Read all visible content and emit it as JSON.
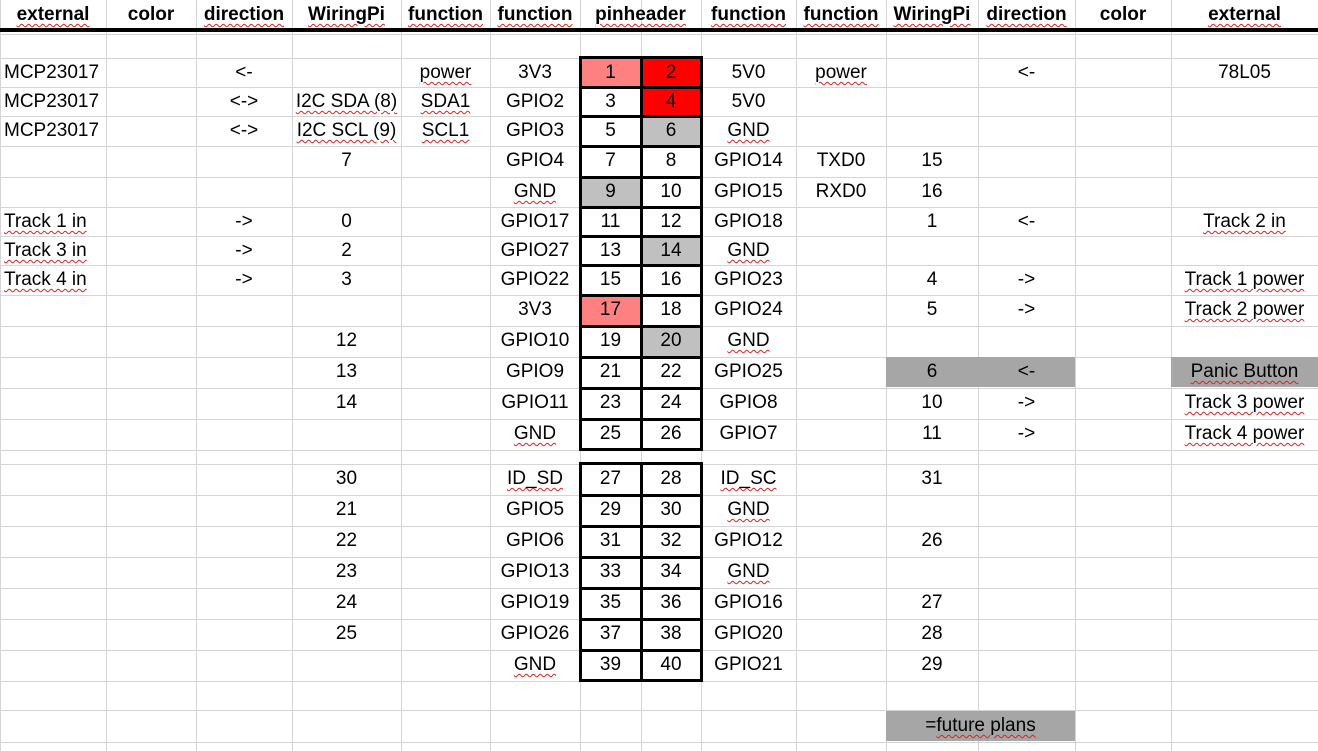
{
  "headers": [
    "external",
    "color",
    "direction",
    "WiringPi",
    "function",
    "function",
    "pinheader",
    "",
    "function",
    "function",
    "WiringPi",
    "direction",
    "color",
    "external"
  ],
  "colors": {
    "grid": "#d4d4d4",
    "pin_power_3v3": "#ff8080",
    "pin_power_5v": "#ff0000",
    "pin_ground": "#c0c0c0",
    "future_plans": "#a6a6a6"
  },
  "legend": {
    "label": "= future plans"
  },
  "rows": [
    {
      "c": [
        "MCP23017",
        "",
        "<-",
        "",
        "power",
        "3V3",
        "1",
        "2",
        "5V0",
        "power",
        "",
        "<-",
        "",
        "78L05"
      ],
      "p1": "p33",
      "p2": "p5"
    },
    {
      "c": [
        "MCP23017",
        "",
        "<->",
        "I2C SDA (8)",
        "SDA1",
        "GPIO2",
        "3",
        "4",
        "5V0",
        "",
        "",
        "",
        "",
        ""
      ],
      "p1": "",
      "p2": "p5"
    },
    {
      "c": [
        "MCP23017",
        "",
        "<->",
        "I2C SCL (9)",
        "SCL1",
        "GPIO3",
        "5",
        "6",
        "GND",
        "",
        "",
        "",
        "",
        ""
      ],
      "p1": "",
      "p2": "g"
    },
    {
      "c": [
        "",
        "",
        "",
        "7",
        "",
        "GPIO4",
        "7",
        "8",
        "GPIO14",
        "TXD0",
        "15",
        "",
        "",
        ""
      ],
      "p1": "",
      "p2": ""
    },
    {
      "c": [
        "",
        "",
        "",
        "",
        "",
        "GND",
        "9",
        "10",
        "GPIO15",
        "RXD0",
        "16",
        "",
        "",
        ""
      ],
      "p1": "g",
      "p2": ""
    },
    {
      "c": [
        "Track 1 in",
        "",
        "->",
        "0",
        "",
        "GPIO17",
        "11",
        "12",
        "GPIO18",
        "",
        "1",
        "<-",
        "",
        "Track 2 in"
      ],
      "p1": "",
      "p2": ""
    },
    {
      "c": [
        "Track 3 in",
        "",
        "->",
        "2",
        "",
        "GPIO27",
        "13",
        "14",
        "GND",
        "",
        "",
        "",
        "",
        ""
      ],
      "p1": "",
      "p2": "g"
    },
    {
      "c": [
        "Track 4 in",
        "",
        "->",
        "3",
        "",
        "GPIO22",
        "15",
        "16",
        "GPIO23",
        "",
        "4",
        "->",
        "",
        "Track 1 power"
      ],
      "p1": "",
      "p2": ""
    },
    {
      "c": [
        "",
        "",
        "",
        "",
        "",
        "3V3",
        "17",
        "18",
        "GPIO24",
        "",
        "5",
        "->",
        "",
        "Track 2 power"
      ],
      "p1": "p33",
      "p2": ""
    },
    {
      "c": [
        "",
        "",
        "",
        "12",
        "",
        "GPIO10",
        "19",
        "20",
        "GND",
        "",
        "",
        "",
        "",
        ""
      ],
      "p1": "",
      "p2": "g"
    },
    {
      "c": [
        "",
        "",
        "",
        "13",
        "",
        "GPIO9",
        "21",
        "22",
        "GPIO25",
        "",
        "6",
        "<-",
        "",
        "Panic Button"
      ],
      "p1": "",
      "p2": "",
      "future": true
    },
    {
      "c": [
        "",
        "",
        "",
        "14",
        "",
        "GPIO11",
        "23",
        "24",
        "GPIO8",
        "",
        "10",
        "->",
        "",
        "Track 3 power"
      ],
      "p1": "",
      "p2": ""
    },
    {
      "c": [
        "",
        "",
        "",
        "",
        "",
        "GND",
        "25",
        "26",
        "GPIO7",
        "",
        "11",
        "->",
        "",
        "Track 4 power"
      ],
      "p1": "",
      "p2": ""
    },
    {
      "c": [
        "",
        "",
        "",
        "30",
        "",
        "ID_SD",
        "27",
        "28",
        "ID_SC",
        "",
        "31",
        "",
        "",
        ""
      ],
      "p1": "",
      "p2": ""
    },
    {
      "c": [
        "",
        "",
        "",
        "21",
        "",
        "GPIO5",
        "29",
        "30",
        "GND",
        "",
        "",
        "",
        "",
        ""
      ],
      "p1": "",
      "p2": ""
    },
    {
      "c": [
        "",
        "",
        "",
        "22",
        "",
        "GPIO6",
        "31",
        "32",
        "GPIO12",
        "",
        "26",
        "",
        "",
        ""
      ],
      "p1": "",
      "p2": ""
    },
    {
      "c": [
        "",
        "",
        "",
        "23",
        "",
        "GPIO13",
        "33",
        "34",
        "GND",
        "",
        "",
        "",
        "",
        ""
      ],
      "p1": "",
      "p2": ""
    },
    {
      "c": [
        "",
        "",
        "",
        "24",
        "",
        "GPIO19",
        "35",
        "36",
        "GPIO16",
        "",
        "27",
        "",
        "",
        ""
      ],
      "p1": "",
      "p2": ""
    },
    {
      "c": [
        "",
        "",
        "",
        "25",
        "",
        "GPIO26",
        "37",
        "38",
        "GPIO20",
        "",
        "28",
        "",
        "",
        ""
      ],
      "p1": "",
      "p2": ""
    },
    {
      "c": [
        "",
        "",
        "",
        "",
        "",
        "GND",
        "39",
        "40",
        "GPIO21",
        "",
        "29",
        "",
        "",
        ""
      ],
      "p1": "",
      "p2": ""
    }
  ],
  "squiggle": [
    "external",
    "direction",
    "WiringPi",
    "function",
    "pinheader",
    "power",
    "I2C SDA (8)",
    "I2C SCL (9)",
    "GND",
    "Track 1 in",
    "Track 2 in",
    "Track 3 in",
    "Track 4 in",
    "Track 1 power",
    "Track 2 power",
    "Track 3 power",
    "Track 4 power",
    "ID_SD",
    "ID_SC",
    "Panic Button",
    "future plans"
  ]
}
